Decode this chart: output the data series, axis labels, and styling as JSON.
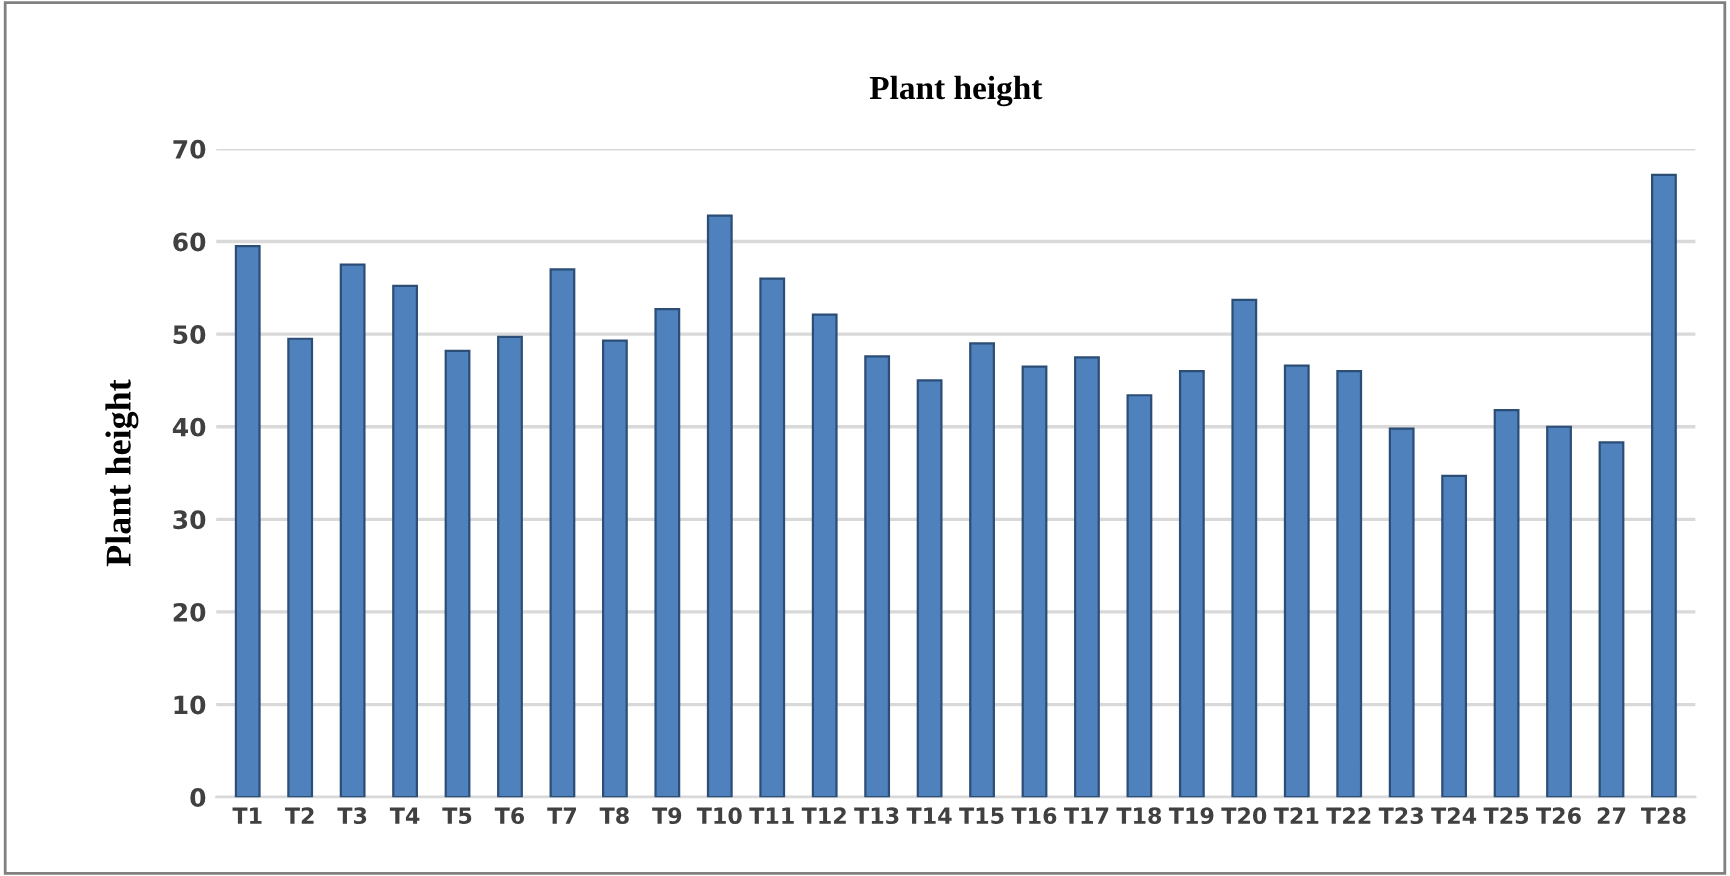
{
  "chart_data": {
    "type": "bar",
    "title": "Plant height",
    "ylabel": "Plant height",
    "categories": [
      "T1",
      "T2",
      "T3",
      "T4",
      "T5",
      "T6",
      "T7",
      "T8",
      "T9",
      "T10",
      "T11",
      "T12",
      "T13",
      "T14",
      "T15",
      "T16",
      "T17",
      "T18",
      "T19",
      "T20",
      "T21",
      "T22",
      "T23",
      "T24",
      "T25",
      "T26",
      "27",
      "T28"
    ],
    "values": [
      59.5,
      49.5,
      57.5,
      55.2,
      48.2,
      49.7,
      57,
      49.3,
      52.7,
      62.8,
      56,
      52.1,
      47.6,
      45,
      49,
      46.5,
      47.5,
      43.4,
      46,
      53.7,
      46.6,
      46,
      39.8,
      34.7,
      41.8,
      40,
      38.3,
      67.2
    ],
    "color": "#4f81bd",
    "ylim": [
      0,
      70
    ],
    "yticks": [
      0,
      10,
      20,
      30,
      40,
      50,
      60,
      70
    ],
    "grid": "y",
    "legend": false
  }
}
